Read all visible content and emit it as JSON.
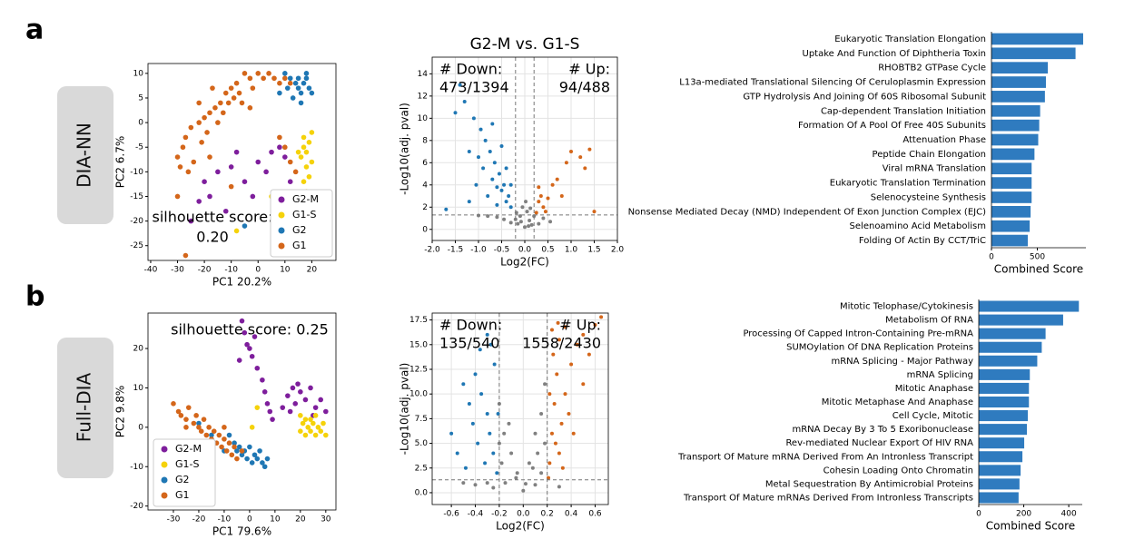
{
  "panels": [
    {
      "letter": "a",
      "method": "DIA-NN"
    },
    {
      "letter": "b",
      "method": "Full-DIA"
    }
  ],
  "chart_data": [
    {
      "type": "scatter",
      "x_label": "PC1 20.2%",
      "y_label": "PC2 6.7%",
      "annotation": [
        "silhouette score:",
        "0.20"
      ],
      "legend": "lower right",
      "xlim": [
        -41,
        29
      ],
      "ylim": [
        -28,
        12
      ],
      "xticks": [
        -40,
        -30,
        -20,
        -10,
        0,
        10,
        20
      ],
      "yticks": [
        -25,
        -20,
        -15,
        -10,
        -5,
        0,
        5,
        10
      ],
      "grid": false,
      "series": [
        {
          "name": "G2-M",
          "color": "#7e1e9c",
          "x": [
            -20,
            -18,
            -15,
            -12,
            -25,
            -10,
            -5,
            0,
            3,
            5,
            8,
            10,
            -2,
            -8,
            12,
            -22
          ],
          "y": [
            -12,
            -15,
            -10,
            -18,
            -20,
            -9,
            -12,
            -8,
            -10,
            -6,
            -5,
            -7,
            -15,
            -6,
            -12,
            -16
          ]
        },
        {
          "name": "G1-S",
          "color": "#f5d20a",
          "x": [
            17,
            18,
            19,
            20,
            17,
            18,
            19,
            16,
            20,
            15,
            17,
            6,
            5,
            -8,
            18
          ],
          "y": [
            -5,
            -6,
            -4,
            -8,
            -3,
            -9,
            -11,
            -7,
            -2,
            -6,
            -12,
            -18,
            -15,
            -22,
            -14
          ]
        },
        {
          "name": "G2",
          "color": "#1f77b4",
          "x": [
            10,
            12,
            14,
            15,
            16,
            17,
            18,
            19,
            20,
            13,
            11,
            16,
            8,
            18,
            15,
            14,
            -5,
            20,
            12
          ],
          "y": [
            10,
            9,
            8,
            7,
            6,
            8,
            9,
            7,
            6,
            5,
            7,
            4,
            6,
            10,
            9,
            -20,
            -21,
            -15,
            -18
          ]
        },
        {
          "name": "G1",
          "color": "#d4661a",
          "x": [
            -5,
            -3,
            0,
            2,
            4,
            6,
            -8,
            -10,
            -12,
            -14,
            -16,
            -18,
            -20,
            -22,
            -25,
            -27,
            -28,
            -30,
            -29,
            -26,
            -24,
            -21,
            -19,
            -15,
            -13,
            -11,
            -9,
            -7,
            8,
            10,
            12,
            -2,
            -6,
            -30,
            -27,
            -10,
            -18,
            10,
            12,
            14,
            8,
            -22,
            -17,
            -3
          ],
          "y": [
            10,
            9,
            10,
            9,
            10,
            9,
            8,
            7,
            6,
            4,
            3,
            2,
            1,
            0,
            -1,
            -3,
            -5,
            -7,
            -9,
            -10,
            -8,
            -4,
            -2,
            0,
            2,
            4,
            5,
            6,
            8,
            9,
            8,
            7,
            4,
            -15,
            -27,
            -13,
            -7,
            -5,
            -8,
            -10,
            -3,
            4,
            7,
            3
          ]
        }
      ]
    },
    {
      "type": "scatter",
      "title": "G2-M vs. G1-S",
      "x_label": "Log2(FC)",
      "y_label": "-Log10(adj. pval)",
      "down_label": [
        "# Down:",
        "473/1394"
      ],
      "up_label": [
        "# Up:",
        "94/488"
      ],
      "xlim": [
        -2,
        2
      ],
      "ylim": [
        -1,
        15.5
      ],
      "xticks": [
        {
          "value": -2,
          "label": "-2.0"
        },
        {
          "value": -1.5,
          "label": "-1.5"
        },
        {
          "value": -1,
          "label": "-1.0"
        },
        {
          "value": -0.5,
          "label": "-0.5"
        },
        {
          "value": 0,
          "label": "0.0"
        },
        {
          "value": 0.5,
          "label": "0.5"
        },
        {
          "value": 1,
          "label": "1.0"
        },
        {
          "value": 1.5,
          "label": "1.5"
        },
        {
          "value": 2,
          "label": "2.0"
        }
      ],
      "yticks": [
        0,
        2,
        4,
        6,
        8,
        10,
        12,
        14
      ],
      "grid": true,
      "thresholds": {
        "x": [
          -0.2,
          0.2
        ],
        "y": 1.3
      },
      "series": [
        {
          "color": "#808080",
          "x": [
            -0.15,
            0,
            0.1,
            -0.1,
            0.05,
            0.15,
            -0.05,
            0.12,
            -0.18,
            0.02,
            -0.3,
            0.3,
            -0.45,
            0.4,
            -0.6,
            -0.8,
            0.55,
            -1.0,
            -0.2,
            0.2,
            0.08,
            -0.08
          ],
          "y": [
            0.5,
            0.2,
            0.8,
            1.2,
            1.6,
            0.4,
            2.0,
            1.9,
            1.5,
            2.5,
            0.6,
            0.5,
            0.9,
            1.0,
            1.1,
            1.2,
            0.7,
            1.25,
            0.9,
            1.2,
            0.3,
            0.7
          ]
        },
        {
          "color": "#1f77b4",
          "x": [
            -0.3,
            -0.35,
            -0.4,
            -0.45,
            -0.5,
            -0.55,
            -0.6,
            -0.65,
            -0.7,
            -0.75,
            -0.8,
            -0.85,
            -0.9,
            -0.95,
            -1.0,
            -1.1,
            -1.2,
            -1.3,
            -1.5,
            -1.4,
            -0.5,
            -0.3,
            -0.4,
            -0.6,
            -1.7,
            -1.2,
            -0.7,
            -1.05
          ],
          "y": [
            2,
            3,
            2.5,
            4,
            3.5,
            5,
            2.2,
            6,
            4.5,
            7,
            3,
            8,
            5.5,
            9,
            6.5,
            10,
            7,
            11.5,
            10.5,
            13,
            7.5,
            4,
            5.5,
            3.8,
            1.8,
            2.5,
            9.5,
            4
          ]
        },
        {
          "color": "#d4661a",
          "x": [
            0.25,
            0.3,
            0.35,
            0.3,
            0.4,
            0.45,
            0.5,
            0.6,
            0.7,
            0.9,
            1.0,
            1.2,
            1.3,
            0.8,
            1.5,
            1.4
          ],
          "y": [
            1.5,
            2.5,
            3,
            3.8,
            2,
            1.6,
            2.8,
            4,
            4.5,
            6,
            7,
            6.5,
            5.5,
            3,
            1.6,
            7.2
          ]
        }
      ]
    },
    {
      "type": "bar",
      "orientation": "horizontal",
      "x_label": "Combined Score",
      "color": "#2f7bbf",
      "xlim": [
        0,
        1030
      ],
      "xticks": [
        0,
        500
      ],
      "categories": [
        "Eukaryotic Translation Elongation",
        "Uptake And Function Of Diphtheria Toxin",
        "RHOBTB2 GTPase Cycle",
        "L13a-mediated Translational Silencing Of Ceruloplasmin Expression",
        "GTP Hydrolysis And Joining Of 60S Ribosomal Subunit",
        "Cap-dependent Translation Initiation",
        "Formation Of A Pool Of Free 40S Subunits",
        "Attenuation Phase",
        "Peptide Chain Elongation",
        "Viral mRNA Translation",
        "Eukaryotic Translation Termination",
        "Selenocysteine Synthesis",
        "Nonsense Mediated Decay (NMD) Independent Of Exon Junction Complex (EJC)",
        "Selenoamino Acid Metabolism",
        "Folding Of Actin By CCT/TriC"
      ],
      "values": [
        1000,
        917,
        615,
        594,
        583,
        531,
        521,
        510,
        469,
        438,
        438,
        438,
        427,
        417,
        396
      ]
    },
    {
      "type": "scatter",
      "x_label": "PC1 79.6%",
      "y_label": "PC2 9.8%",
      "annotation": [
        "silhouette score: 0.25"
      ],
      "legend": "lower left",
      "xlim": [
        -40,
        34
      ],
      "ylim": [
        -21,
        29
      ],
      "xticks": [
        -30,
        -20,
        -10,
        0,
        10,
        20,
        30
      ],
      "yticks": [
        -20,
        -10,
        0,
        10,
        20
      ],
      "grid": false,
      "series": [
        {
          "name": "G2-M",
          "color": "#7e1e9c",
          "x": [
            -3,
            -2,
            -1,
            0,
            1,
            3,
            5,
            6,
            7,
            8,
            9,
            -4,
            2,
            15,
            17,
            18,
            20,
            22,
            24,
            26,
            28,
            30,
            16,
            19,
            25,
            13
          ],
          "y": [
            27,
            24,
            21,
            20,
            18,
            15,
            12,
            9,
            6,
            4,
            2,
            17,
            23,
            8,
            10,
            6,
            9,
            7,
            10,
            5,
            7,
            4,
            4,
            11,
            3,
            5
          ]
        },
        {
          "name": "G1-S",
          "color": "#f5d20a",
          "x": [
            20,
            21,
            22,
            23,
            24,
            25,
            26,
            27,
            28,
            29,
            22,
            24,
            26,
            20,
            30,
            1,
            3
          ],
          "y": [
            3,
            1,
            2,
            0,
            -1,
            1,
            -2,
            0,
            -1,
            1,
            -2,
            2,
            3,
            -1,
            -2,
            0,
            5
          ]
        },
        {
          "name": "G2",
          "color": "#1f77b4",
          "x": [
            -8,
            -6,
            -5,
            -4,
            -3,
            -2,
            -1,
            0,
            1,
            2,
            3,
            4,
            5,
            6,
            -20,
            -15,
            -10,
            7
          ],
          "y": [
            -2,
            -4,
            -6,
            -5,
            -7,
            -6,
            -8,
            -5,
            -9,
            -7,
            -8,
            -6,
            -9,
            -10,
            1,
            -2,
            -6,
            -8
          ]
        },
        {
          "name": "G1",
          "color": "#d4661a",
          "x": [
            -30,
            -28,
            -27,
            -25,
            -24,
            -22,
            -21,
            -20,
            -19,
            -18,
            -17,
            -16,
            -15,
            -14,
            -13,
            -12,
            -11,
            -10,
            -9,
            -8,
            -7,
            -6,
            -5,
            -3,
            -18,
            -25,
            -10
          ],
          "y": [
            6,
            4,
            3,
            2,
            5,
            1,
            3,
            0,
            -1,
            2,
            -2,
            0,
            -3,
            -1,
            -4,
            -2,
            -5,
            -3,
            -6,
            -4,
            -7,
            -5,
            -8,
            -6,
            -5,
            0,
            0
          ]
        }
      ]
    },
    {
      "type": "scatter",
      "x_label": "Log2(FC)",
      "y_label": "-Log10(adj. pval)",
      "down_label": [
        "# Down:",
        "135/540"
      ],
      "up_label": [
        "# Up:",
        "1558/2430"
      ],
      "xlim": [
        -0.76,
        0.71
      ],
      "ylim": [
        -1.2,
        18.2
      ],
      "xticks": [
        -0.6,
        -0.4,
        -0.2,
        {
          "value": 0,
          "label": "0.0"
        },
        0.2,
        0.4,
        0.6
      ],
      "yticks": [
        {
          "value": 0,
          "label": "0.0"
        },
        2.5,
        {
          "value": 5,
          "label": "5.0"
        },
        7.5,
        {
          "value": 10,
          "label": "10.0"
        },
        12.5,
        {
          "value": 15,
          "label": "15.0"
        },
        17.5
      ],
      "grid": true,
      "thresholds": {
        "x": [
          -0.2,
          0.2
        ],
        "y": 1.3
      },
      "series": [
        {
          "color": "#808080",
          "x": [
            -0.15,
            0,
            0.1,
            -0.05,
            0.05,
            0.15,
            -0.1,
            0.18,
            -0.18,
            0.1,
            -0.2,
            -0.3,
            -0.4,
            0.3,
            0.02,
            -0.12,
            0.15,
            -0.2,
            0.18,
            -0.06,
            0.08,
            -0.25,
            -0.5,
            0.12,
            -0.16
          ],
          "y": [
            1,
            0.2,
            0.8,
            2,
            3,
            2,
            4,
            5,
            3,
            6,
            5,
            1,
            0.8,
            0.6,
            0.9,
            7,
            8,
            9,
            11,
            1.5,
            2.5,
            0.5,
            1,
            4,
            6
          ]
        },
        {
          "color": "#1f77b4",
          "x": [
            -0.22,
            -0.25,
            -0.28,
            -0.3,
            -0.32,
            -0.35,
            -0.38,
            -0.4,
            -0.42,
            -0.45,
            -0.5,
            -0.55,
            -0.24,
            -0.27,
            -0.3,
            -0.36,
            -0.6,
            -0.48,
            -0.21
          ],
          "y": [
            2,
            4,
            6,
            8,
            3,
            10,
            5,
            12,
            7,
            9,
            11,
            4,
            13,
            15,
            16,
            14.5,
            6,
            2.5,
            8
          ]
        },
        {
          "color": "#d4661a",
          "x": [
            0.22,
            0.24,
            0.26,
            0.28,
            0.3,
            0.32,
            0.25,
            0.3,
            0.35,
            0.4,
            0.45,
            0.5,
            0.55,
            0.6,
            0.65,
            0.22,
            0.27,
            0.33,
            0.38,
            0.42,
            0.5,
            0.24,
            0.29,
            0.35,
            0.21
          ],
          "y": [
            3,
            6,
            9,
            12,
            4,
            7,
            14,
            15.5,
            10,
            13,
            15,
            16,
            14,
            17,
            17.8,
            10,
            5,
            2.5,
            8,
            6,
            11,
            16.5,
            17.2,
            16.8,
            1.5
          ]
        }
      ]
    },
    {
      "type": "bar",
      "orientation": "horizontal",
      "x_label": "Combined Score",
      "color": "#2f7bbf",
      "xlim": [
        0,
        460
      ],
      "xticks": [
        0,
        200,
        400
      ],
      "categories": [
        "Mitotic Telophase/Cytokinesis",
        "Metabolism Of RNA",
        "Processing Of Capped Intron-Containing Pre-mRNA",
        "SUMOylation Of DNA Replication Proteins",
        "mRNA Splicing - Major Pathway",
        "mRNA Splicing",
        "Mitotic Anaphase",
        "Mitotic Metaphase And Anaphase",
        "Cell Cycle, Mitotic",
        "mRNA Decay By 3 To 5 Exoribonuclease",
        "Rev-mediated Nuclear Export Of HIV RNA",
        "Transport Of Mature mRNA Derived From An Intronless Transcript",
        "Cohesin Loading Onto Chromatin",
        "Metal Sequestration By Antimicrobial Proteins",
        "Transport Of Mature mRNAs Derived From Intronless Transcripts"
      ],
      "values": [
        445,
        375,
        297,
        280,
        260,
        227,
        223,
        223,
        218,
        214,
        202,
        194,
        186,
        181,
        177
      ]
    }
  ]
}
